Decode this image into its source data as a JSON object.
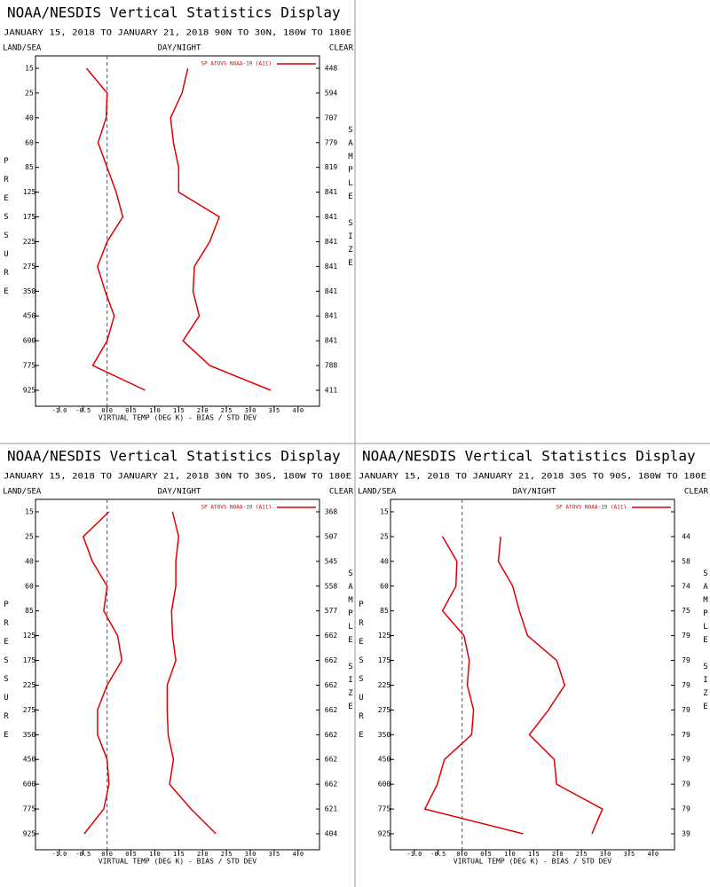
{
  "chart_data": [
    {
      "type": "line",
      "title": "NOAA/NESDIS Vertical Statistics Display",
      "subtitle": "JANUARY 15, 2018 TO JANUARY 21, 2018  90N TO 30N, 180W TO 180E",
      "labels": {
        "land_sea": "LAND/SEA",
        "day_night": "DAY/NIGHT",
        "clear": "CLEAR"
      },
      "ylabel": "PRESSURE",
      "y2label": "SAMPLE SIZE",
      "xlabel": "VIRTUAL TEMP (DEG K) - BIAS / STD DEV",
      "categories": [
        15,
        25,
        40,
        60,
        85,
        125,
        175,
        225,
        275,
        350,
        450,
        600,
        775,
        925
      ],
      "sample_size": [
        448,
        594,
        707,
        779,
        819,
        841,
        841,
        841,
        841,
        841,
        841,
        841,
        788,
        411
      ],
      "series": [
        {
          "name": "SP ATOVS NOAA-19 (A11)",
          "color": "#e00000",
          "bias": [
            -0.43,
            0.0,
            -0.02,
            -0.19,
            0.0,
            0.19,
            0.33,
            0.0,
            -0.2,
            -0.04,
            0.15,
            0.0,
            -0.3,
            0.8
          ],
          "std_dev": [
            1.69,
            1.57,
            1.33,
            1.39,
            1.5,
            1.5,
            2.35,
            2.15,
            1.83,
            1.8,
            1.93,
            1.59,
            2.15,
            3.43
          ]
        }
      ],
      "xlim": [
        -1.5,
        4.45
      ],
      "xticks": [
        {
          "value": -1,
          "label": "-1.0"
        },
        -0.5,
        {
          "value": 0,
          "label": "0.0"
        },
        0.5,
        {
          "value": 1,
          "label": "1.0"
        },
        1.5,
        {
          "value": 2,
          "label": "2.0"
        },
        2.5,
        {
          "value": 3,
          "label": "3.0"
        },
        3.5,
        {
          "value": 4,
          "label": "4.0"
        }
      ]
    },
    {
      "type": "line",
      "title": "NOAA/NESDIS Vertical Statistics Display",
      "subtitle": "JANUARY 15, 2018 TO JANUARY 21, 2018  30N TO 30S, 180W TO 180E",
      "labels": {
        "land_sea": "LAND/SEA",
        "day_night": "DAY/NIGHT",
        "clear": "CLEAR"
      },
      "ylabel": "PRESSURE",
      "y2label": "SAMPLE SIZE",
      "xlabel": "VIRTUAL TEMP (DEG K) - BIAS / STD DEV",
      "categories": [
        15,
        25,
        40,
        60,
        85,
        125,
        175,
        225,
        275,
        350,
        450,
        600,
        775,
        925
      ],
      "sample_size": [
        368,
        507,
        545,
        558,
        577,
        662,
        662,
        662,
        662,
        662,
        662,
        662,
        621,
        404
      ],
      "series": [
        {
          "name": "SP ATOVS NOAA-19 (A11)",
          "color": "#e00000",
          "bias": [
            0.04,
            -0.5,
            -0.31,
            0.0,
            -0.07,
            0.22,
            0.31,
            0.0,
            -0.2,
            -0.2,
            0.0,
            0.04,
            -0.07,
            -0.48
          ],
          "std_dev": [
            1.37,
            1.5,
            1.44,
            1.44,
            1.35,
            1.37,
            1.44,
            1.26,
            1.26,
            1.28,
            1.39,
            1.31,
            1.76,
            2.28
          ]
        }
      ],
      "xlim": [
        -1.5,
        4.45
      ],
      "xticks": [
        {
          "value": -1,
          "label": "-1.0"
        },
        -0.5,
        {
          "value": 0,
          "label": "0.0"
        },
        0.5,
        {
          "value": 1,
          "label": "1.0"
        },
        1.5,
        {
          "value": 2,
          "label": "2.0"
        },
        2.5,
        {
          "value": 3,
          "label": "3.0"
        },
        3.5,
        {
          "value": 4,
          "label": "4.0"
        }
      ]
    },
    {
      "type": "line",
      "title": "NOAA/NESDIS Vertical Statistics Display",
      "subtitle": "JANUARY 15, 2018 TO JANUARY 21, 2018  30S TO 90S, 180W TO 180E",
      "labels": {
        "land_sea": "LAND/SEA",
        "day_night": "DAY/NIGHT",
        "clear": "CLEAR"
      },
      "ylabel": "PRESSURE",
      "y2label": "SAMPLE SIZE",
      "xlabel": "VIRTUAL TEMP (DEG K) - BIAS / STD DEV",
      "categories": [
        15,
        25,
        40,
        60,
        85,
        125,
        175,
        225,
        275,
        350,
        450,
        600,
        775,
        925
      ],
      "sample_size": [
        null,
        44,
        58,
        74,
        75,
        79,
        79,
        79,
        79,
        79,
        79,
        79,
        79,
        39
      ],
      "series": [
        {
          "name": "SP ATOVS NOAA-19 (A11)",
          "color": "#e00000",
          "bias": [
            null,
            -0.41,
            -0.11,
            -0.13,
            -0.41,
            0.04,
            0.15,
            0.11,
            0.24,
            0.2,
            -0.37,
            -0.52,
            -0.78,
            1.28
          ],
          "std_dev": [
            null,
            0.81,
            0.76,
            1.06,
            1.2,
            1.37,
            1.98,
            2.15,
            1.81,
            1.41,
            1.93,
            1.98,
            2.94,
            2.72
          ]
        }
      ],
      "xlim": [
        -1.5,
        4.45
      ],
      "xticks": [
        {
          "value": -1,
          "label": "-1.0"
        },
        -0.5,
        {
          "value": 0,
          "label": "0.0"
        },
        0.5,
        {
          "value": 1,
          "label": "1.0"
        },
        1.5,
        {
          "value": 2,
          "label": "2.0"
        },
        2.5,
        {
          "value": 3,
          "label": "3.0"
        },
        3.5,
        {
          "value": 4,
          "label": "4.0"
        }
      ]
    }
  ]
}
